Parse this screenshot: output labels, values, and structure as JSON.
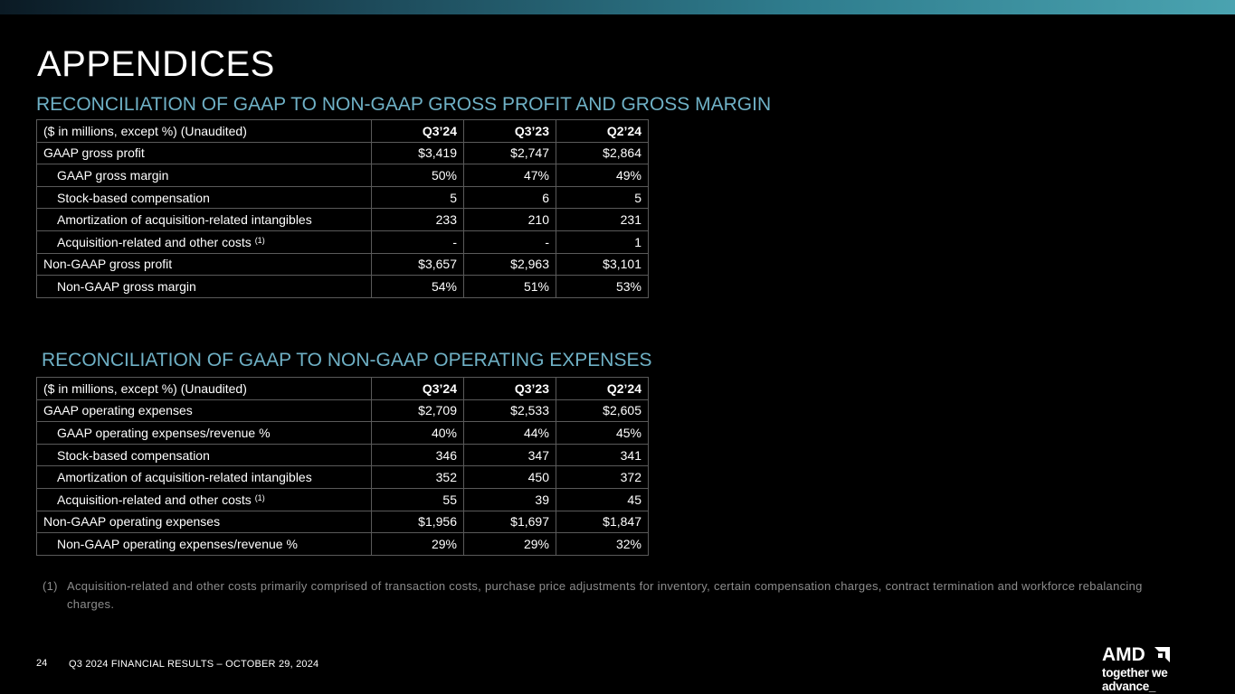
{
  "slide_title": "APPENDICES",
  "gross_profit_section": {
    "title": "RECONCILIATION OF GAAP TO NON-GAAP GROSS PROFIT AND GROSS MARGIN",
    "header": {
      "label": "($ in millions, except %) (Unaudited)",
      "columns": [
        "Q3’24",
        "Q3’23",
        "Q2’24"
      ]
    },
    "rows": [
      {
        "label": "GAAP gross profit",
        "values": [
          "$3,419",
          "$2,747",
          "$2,864"
        ]
      },
      {
        "label": "GAAP gross margin",
        "values": [
          "50%",
          "47%",
          "49%"
        ]
      },
      {
        "label": "Stock-based compensation",
        "values": [
          "5",
          "6",
          "5"
        ]
      },
      {
        "label": "Amortization of acquisition-related intangibles",
        "values": [
          "233",
          "210",
          "231"
        ]
      },
      {
        "label": "Acquisition-related and other costs",
        "note": "(1)",
        "values": [
          "-",
          "-",
          "1"
        ]
      },
      {
        "label": "Non-GAAP gross profit",
        "values": [
          "$3,657",
          "$2,963",
          "$3,101"
        ]
      },
      {
        "label": "Non-GAAP gross margin",
        "values": [
          "54%",
          "51%",
          "53%"
        ]
      }
    ]
  },
  "operating_expenses_section": {
    "title": "RECONCILIATION OF GAAP TO NON-GAAP OPERATING EXPENSES",
    "header": {
      "label": "($ in millions, except %) (Unaudited)",
      "columns": [
        "Q3’24",
        "Q3’23",
        "Q2’24"
      ]
    },
    "rows": [
      {
        "label": "GAAP operating expenses",
        "values": [
          "$2,709",
          "$2,533",
          "$2,605"
        ]
      },
      {
        "label": "GAAP operating expenses/revenue %",
        "values": [
          "40%",
          "44%",
          "45%"
        ]
      },
      {
        "label": "Stock-based compensation",
        "values": [
          "346",
          "347",
          "341"
        ]
      },
      {
        "label": "Amortization of acquisition-related intangibles",
        "values": [
          "352",
          "450",
          "372"
        ]
      },
      {
        "label": "Acquisition-related and other costs",
        "note": "(1)",
        "values": [
          "55",
          "39",
          "45"
        ]
      },
      {
        "label": "Non-GAAP operating expenses",
        "values": [
          "$1,956",
          "$1,697",
          "$1,847"
        ]
      },
      {
        "label": "Non-GAAP operating expenses/revenue %",
        "values": [
          "29%",
          "29%",
          "32%"
        ]
      }
    ]
  },
  "footnote": {
    "marker": "(1)",
    "text": "Acquisition-related and other costs primarily comprised of transaction costs, purchase price adjustments for inventory, certain compensation charges, contract termination and workforce rebalancing charges."
  },
  "footer": {
    "page_number": "24",
    "text": "Q3 2024 FINANCIAL RESULTS – OCTOBER 29, 2024"
  },
  "logo": {
    "wordmark": "AMD",
    "tagline": "together we advance_"
  },
  "colors": {
    "background": "#000000",
    "section_title": "#6fb1c6",
    "table_border": "#5a5a5a",
    "footnote": "#8c8c8c"
  }
}
